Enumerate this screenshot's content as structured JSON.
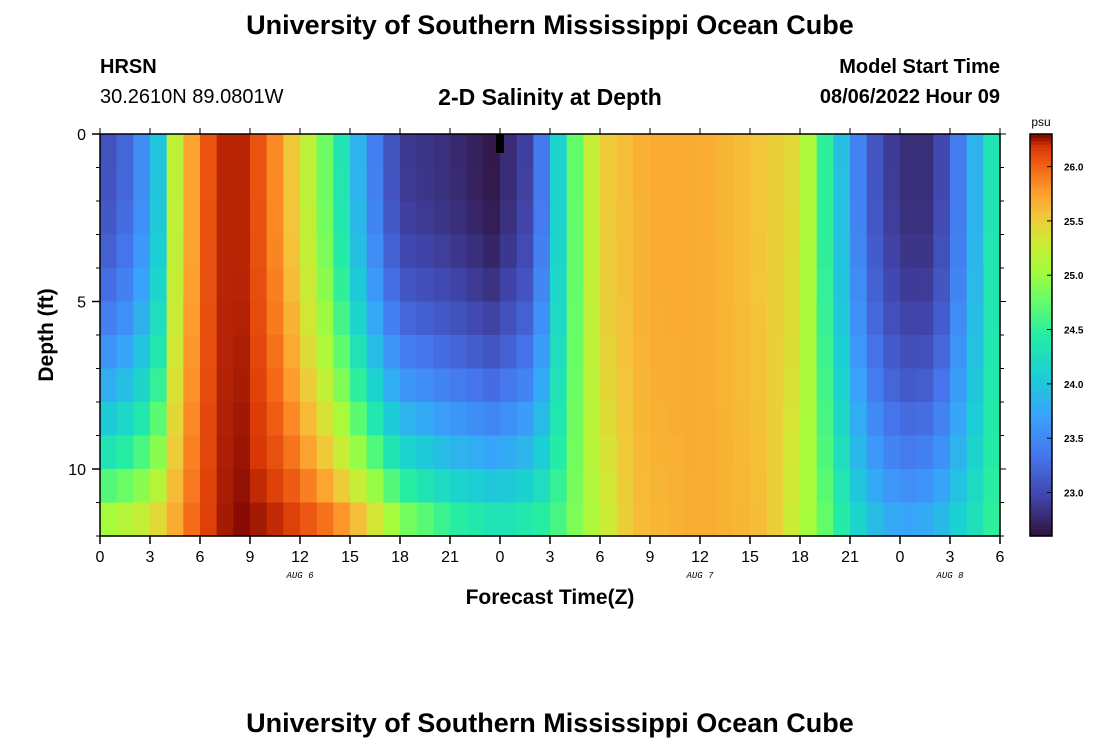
{
  "header": {
    "title": "University of Southern Mississippi Ocean Cube",
    "station": "HRSN",
    "coords": "30.2610N  89.0801W",
    "subtitle": "2-D Salinity at Depth",
    "model_start_label": "Model Start Time",
    "model_start_value": "08/06/2022 Hour 09"
  },
  "footer": {
    "title": "University of Southern Mississippi Ocean Cube"
  },
  "chart_data": {
    "type": "heatmap",
    "title": "2-D Salinity at Depth",
    "xlabel": "Forecast Time(Z)",
    "ylabel": "Depth (ft)",
    "xlim": [
      0,
      54
    ],
    "ylim": [
      0,
      12
    ],
    "x_tick_values": [
      0,
      3,
      6,
      9,
      12,
      15,
      18,
      21,
      24,
      27,
      30,
      33,
      36,
      39,
      42,
      45,
      48,
      51,
      54
    ],
    "x_tick_labels": [
      "0",
      "3",
      "6",
      "9",
      "12",
      "15",
      "18",
      "21",
      "0",
      "3",
      "6",
      "9",
      "12",
      "15",
      "18",
      "21",
      "0",
      "3",
      "6"
    ],
    "day_labels": [
      {
        "x": 12,
        "label": "AUG 6"
      },
      {
        "x": 36,
        "label": "AUG 7"
      },
      {
        "x": 51,
        "label": "AUG 8"
      }
    ],
    "y_tick_values": [
      0,
      5,
      10
    ],
    "y_tick_labels": [
      "0",
      "5",
      "10"
    ],
    "colorbar": {
      "unit": "psu",
      "min": 22.6,
      "max": 26.3,
      "tick_values": [
        23.0,
        23.5,
        24.0,
        24.5,
        25.0,
        25.5,
        26.0
      ],
      "tick_labels": [
        "23.0",
        "23.5",
        "24.0",
        "24.5",
        "25.0",
        "25.5",
        "26.0"
      ]
    },
    "model_start_marker_hour": 24,
    "depth_rows_ft": [
      0.5,
      1.5,
      2.5,
      3.5,
      4.5,
      5.5,
      6.5,
      7.5,
      8.5,
      9.5,
      10.5,
      11.5
    ],
    "series_note": "salinity (psu) by forecast hour; values linearly interpolated between listed hours",
    "surface_profile": {
      "hours": [
        0,
        2,
        3.5,
        4.5,
        6,
        8,
        10,
        12,
        14,
        16,
        18,
        21,
        23.5,
        26,
        28,
        30,
        33,
        36,
        39,
        42,
        44,
        46,
        48,
        50,
        52,
        54
      ],
      "values": [
        23.0,
        23.3,
        24.0,
        25.2,
        26.0,
        26.3,
        26.0,
        25.4,
        24.6,
        23.6,
        22.9,
        22.8,
        22.65,
        23.0,
        24.5,
        25.5,
        25.7,
        25.7,
        25.6,
        25.4,
        24.2,
        23.2,
        22.8,
        22.8,
        23.6,
        24.6
      ]
    },
    "bottom_profile": {
      "hours": [
        0,
        3,
        4.5,
        6,
        8,
        11,
        14,
        16,
        18,
        21,
        24,
        27,
        29,
        32,
        36,
        40,
        42,
        44,
        46,
        48,
        50,
        52,
        54
      ],
      "values": [
        25.0,
        25.3,
        25.7,
        26.1,
        26.3,
        26.2,
        25.9,
        25.5,
        24.9,
        24.5,
        24.3,
        24.5,
        25.0,
        25.6,
        25.7,
        25.6,
        25.2,
        24.6,
        24.0,
        23.7,
        23.8,
        24.2,
        24.6
      ]
    }
  }
}
